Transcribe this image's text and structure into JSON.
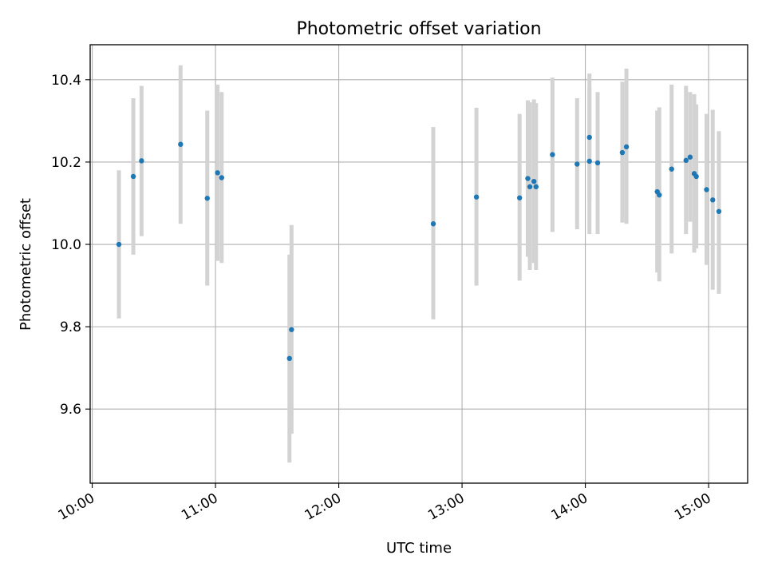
{
  "chart_data": {
    "type": "scatter",
    "title": "Photometric offset variation",
    "xlabel": "UTC time",
    "ylabel": "Photometric offset",
    "x_unit": "UTC time (HH:MM)",
    "xlim": [
      "09:59",
      "15:19"
    ],
    "ylim": [
      9.42,
      10.485
    ],
    "grid": true,
    "x_ticks": [
      "10:00",
      "11:00",
      "12:00",
      "13:00",
      "14:00",
      "15:00"
    ],
    "y_ticks": [
      "9.6",
      "9.8",
      "10.0",
      "10.2",
      "10.4"
    ],
    "colors": {
      "marker": "#1f77b4",
      "errorbar": "#d3d3d3"
    },
    "points": [
      {
        "x": "10:13",
        "y": 10.0,
        "lo": 9.82,
        "hi": 10.18
      },
      {
        "x": "10:20",
        "y": 10.165,
        "lo": 9.975,
        "hi": 10.355
      },
      {
        "x": "10:24",
        "y": 10.203,
        "lo": 10.02,
        "hi": 10.385
      },
      {
        "x": "10:43",
        "y": 10.243,
        "lo": 10.05,
        "hi": 10.435
      },
      {
        "x": "10:56",
        "y": 10.112,
        "lo": 9.9,
        "hi": 10.325
      },
      {
        "x": "11:01",
        "y": 10.174,
        "lo": 9.96,
        "hi": 10.388
      },
      {
        "x": "11:03",
        "y": 10.162,
        "lo": 9.955,
        "hi": 10.37
      },
      {
        "x": "11:36",
        "y": 9.723,
        "lo": 9.47,
        "hi": 9.975
      },
      {
        "x": "11:37",
        "y": 9.793,
        "lo": 9.54,
        "hi": 10.047
      },
      {
        "x": "12:46",
        "y": 10.05,
        "lo": 9.818,
        "hi": 10.285
      },
      {
        "x": "13:07",
        "y": 10.115,
        "lo": 9.9,
        "hi": 10.332
      },
      {
        "x": "13:28",
        "y": 10.113,
        "lo": 9.912,
        "hi": 10.317
      },
      {
        "x": "13:32",
        "y": 10.16,
        "lo": 9.97,
        "hi": 10.35
      },
      {
        "x": "13:33",
        "y": 10.14,
        "lo": 9.938,
        "hi": 10.345
      },
      {
        "x": "13:35",
        "y": 10.153,
        "lo": 9.955,
        "hi": 10.352
      },
      {
        "x": "13:36",
        "y": 10.14,
        "lo": 9.938,
        "hi": 10.343
      },
      {
        "x": "13:44",
        "y": 10.218,
        "lo": 10.03,
        "hi": 10.405
      },
      {
        "x": "13:56",
        "y": 10.195,
        "lo": 10.037,
        "hi": 10.355
      },
      {
        "x": "14:02",
        "y": 10.202,
        "lo": 10.025,
        "hi": 10.38
      },
      {
        "x": "14:02",
        "y": 10.26,
        "lo": 10.105,
        "hi": 10.415
      },
      {
        "x": "14:06",
        "y": 10.198,
        "lo": 10.025,
        "hi": 10.37
      },
      {
        "x": "14:18",
        "y": 10.223,
        "lo": 10.053,
        "hi": 10.395
      },
      {
        "x": "14:20",
        "y": 10.237,
        "lo": 10.05,
        "hi": 10.427
      },
      {
        "x": "14:35",
        "y": 10.128,
        "lo": 9.932,
        "hi": 10.325
      },
      {
        "x": "14:36",
        "y": 10.12,
        "lo": 9.91,
        "hi": 10.333
      },
      {
        "x": "14:42",
        "y": 10.183,
        "lo": 9.978,
        "hi": 10.388
      },
      {
        "x": "14:49",
        "y": 10.204,
        "lo": 10.025,
        "hi": 10.385
      },
      {
        "x": "14:51",
        "y": 10.212,
        "lo": 10.055,
        "hi": 10.37
      },
      {
        "x": "14:53",
        "y": 10.172,
        "lo": 9.98,
        "hi": 10.365
      },
      {
        "x": "14:54",
        "y": 10.165,
        "lo": 9.99,
        "hi": 10.34
      },
      {
        "x": "14:59",
        "y": 10.133,
        "lo": 9.95,
        "hi": 10.317
      },
      {
        "x": "15:02",
        "y": 10.108,
        "lo": 9.89,
        "hi": 10.327
      },
      {
        "x": "15:05",
        "y": 10.08,
        "lo": 9.88,
        "hi": 10.275
      }
    ]
  }
}
